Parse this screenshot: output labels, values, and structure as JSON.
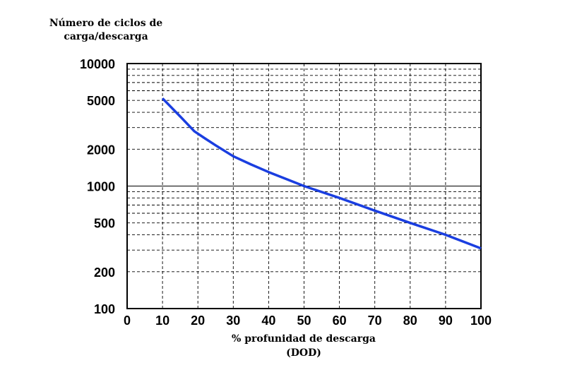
{
  "chart_data": {
    "type": "line",
    "ylabel": [
      "Número de ciclos de",
      "carga/descarga"
    ],
    "xlabel": [
      "% profunidad de descarga",
      "(DOD)"
    ],
    "x_ticks": [
      "0",
      "10",
      "20",
      "30",
      "40",
      "50",
      "60",
      "70",
      "80",
      "90",
      "100"
    ],
    "y_ticks": [
      {
        "value": 10000,
        "label": "10000"
      },
      {
        "value": 5000,
        "label": "5000"
      },
      {
        "value": 2000,
        "label": "2000"
      },
      {
        "value": 1000,
        "label": "1000"
      },
      {
        "value": 500,
        "label": "500"
      },
      {
        "value": 200,
        "label": "200"
      },
      {
        "value": 100,
        "label": "100"
      }
    ],
    "xlim": [
      0,
      100
    ],
    "ylim": [
      100,
      10000
    ],
    "y_scale": "log",
    "grid": true,
    "line_color": "#1a3ee0",
    "series": [
      {
        "x": [
          10,
          15,
          19,
          22,
          25,
          30,
          35,
          40,
          50,
          60,
          70,
          80,
          90,
          100
        ],
        "values": [
          5200,
          3700,
          2800,
          2450,
          2150,
          1750,
          1500,
          1300,
          1000,
          800,
          630,
          500,
          400,
          310
        ]
      }
    ]
  }
}
